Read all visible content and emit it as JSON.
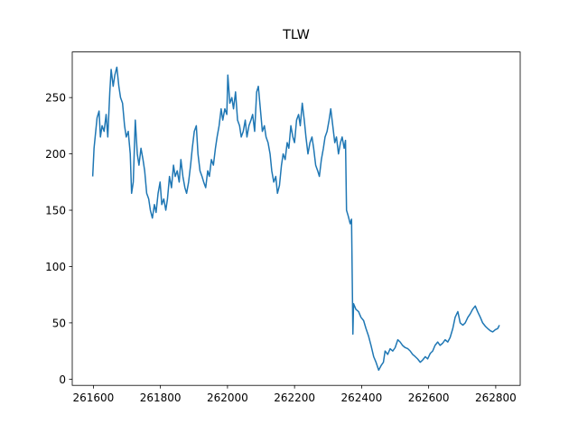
{
  "chart_data": {
    "type": "line",
    "title": "TLW",
    "color": "#1f77b4",
    "x": [
      261598,
      261602,
      261607,
      261611,
      261617,
      261621,
      261626,
      261632,
      261638,
      261643,
      261649,
      261653,
      261659,
      261664,
      261670,
      261676,
      261681,
      261687,
      261693,
      261698,
      261704,
      261710,
      261714,
      261719,
      261725,
      261731,
      261736,
      261742,
      261748,
      261753,
      261759,
      261765,
      261770,
      261776,
      261782,
      261787,
      261793,
      261799,
      261804,
      261810,
      261816,
      261821,
      261827,
      261833,
      261839,
      261844,
      261850,
      261856,
      261861,
      261867,
      261873,
      261878,
      261884,
      261890,
      261895,
      261901,
      261907,
      261912,
      261918,
      261924,
      261929,
      261935,
      261941,
      261946,
      261952,
      261958,
      261964,
      261969,
      261975,
      261981,
      261986,
      261992,
      261998,
      262001,
      262007,
      262013,
      262018,
      262024,
      262030,
      262036,
      262041,
      262047,
      262053,
      262058,
      262064,
      262070,
      262075,
      262081,
      262087,
      262092,
      262098,
      262104,
      262110,
      262115,
      262121,
      262127,
      262132,
      262138,
      262144,
      262149,
      262155,
      262161,
      262166,
      262172,
      262178,
      262183,
      262189,
      262195,
      262200,
      262206,
      262212,
      262217,
      262223,
      262229,
      262234,
      262240,
      262246,
      262252,
      262257,
      262263,
      262269,
      262274,
      262280,
      262286,
      262291,
      262297,
      262303,
      262308,
      262314,
      262320,
      262325,
      262331,
      262337,
      262342,
      262348,
      262352,
      262355,
      262360,
      262366,
      262370,
      262374,
      262376,
      262383,
      262391,
      262398,
      262406,
      262413,
      262421,
      262428,
      262436,
      262443,
      262451,
      262458,
      262465,
      262470,
      262478,
      262485,
      262493,
      262500,
      262508,
      262515,
      262522,
      262530,
      262538,
      262545,
      262552,
      262560,
      262567,
      262575,
      262582,
      262590,
      262597,
      262605,
      262612,
      262619,
      262627,
      262634,
      262642,
      262649,
      262657,
      262664,
      262672,
      262679,
      262687,
      262694,
      262702,
      262709,
      262717,
      262724,
      262731,
      262739,
      262746,
      262754,
      262761,
      262769,
      262776,
      262784,
      262791,
      262799,
      262806,
      262811
    ],
    "values": [
      180,
      205,
      220,
      232,
      238,
      215,
      225,
      220,
      235,
      215,
      255,
      275,
      260,
      270,
      277,
      260,
      250,
      245,
      225,
      215,
      220,
      200,
      165,
      175,
      230,
      200,
      190,
      205,
      195,
      185,
      165,
      160,
      150,
      143,
      155,
      148,
      165,
      175,
      155,
      160,
      150,
      160,
      180,
      170,
      190,
      180,
      185,
      175,
      195,
      180,
      170,
      165,
      175,
      190,
      205,
      220,
      225,
      200,
      185,
      180,
      175,
      170,
      185,
      180,
      195,
      190,
      205,
      215,
      225,
      240,
      230,
      240,
      235,
      270,
      245,
      250,
      240,
      255,
      230,
      225,
      215,
      220,
      230,
      215,
      225,
      230,
      235,
      220,
      255,
      260,
      240,
      220,
      225,
      215,
      210,
      200,
      185,
      175,
      180,
      165,
      172,
      190,
      200,
      195,
      210,
      205,
      225,
      215,
      210,
      230,
      235,
      225,
      245,
      230,
      215,
      200,
      210,
      215,
      205,
      190,
      185,
      180,
      195,
      205,
      215,
      220,
      230,
      240,
      225,
      210,
      215,
      200,
      210,
      215,
      205,
      212,
      150,
      145,
      138,
      142,
      40,
      67,
      62,
      60,
      55,
      52,
      45,
      38,
      30,
      20,
      15,
      8,
      12,
      15,
      25,
      22,
      27,
      25,
      28,
      35,
      33,
      30,
      28,
      27,
      25,
      22,
      20,
      18,
      15,
      17,
      20,
      18,
      23,
      25,
      30,
      33,
      30,
      32,
      35,
      33,
      37,
      45,
      55,
      60,
      50,
      48,
      50,
      55,
      58,
      62,
      65,
      60,
      55,
      50,
      47,
      45,
      43,
      42,
      44,
      45,
      48
    ],
    "xlim": [
      261537,
      262873
    ],
    "ylim": [
      -5.5,
      290.5
    ],
    "xticks": [
      261600,
      261800,
      262000,
      262200,
      262400,
      262600,
      262800
    ],
    "yticks": [
      0,
      50,
      100,
      150,
      200,
      250
    ]
  }
}
